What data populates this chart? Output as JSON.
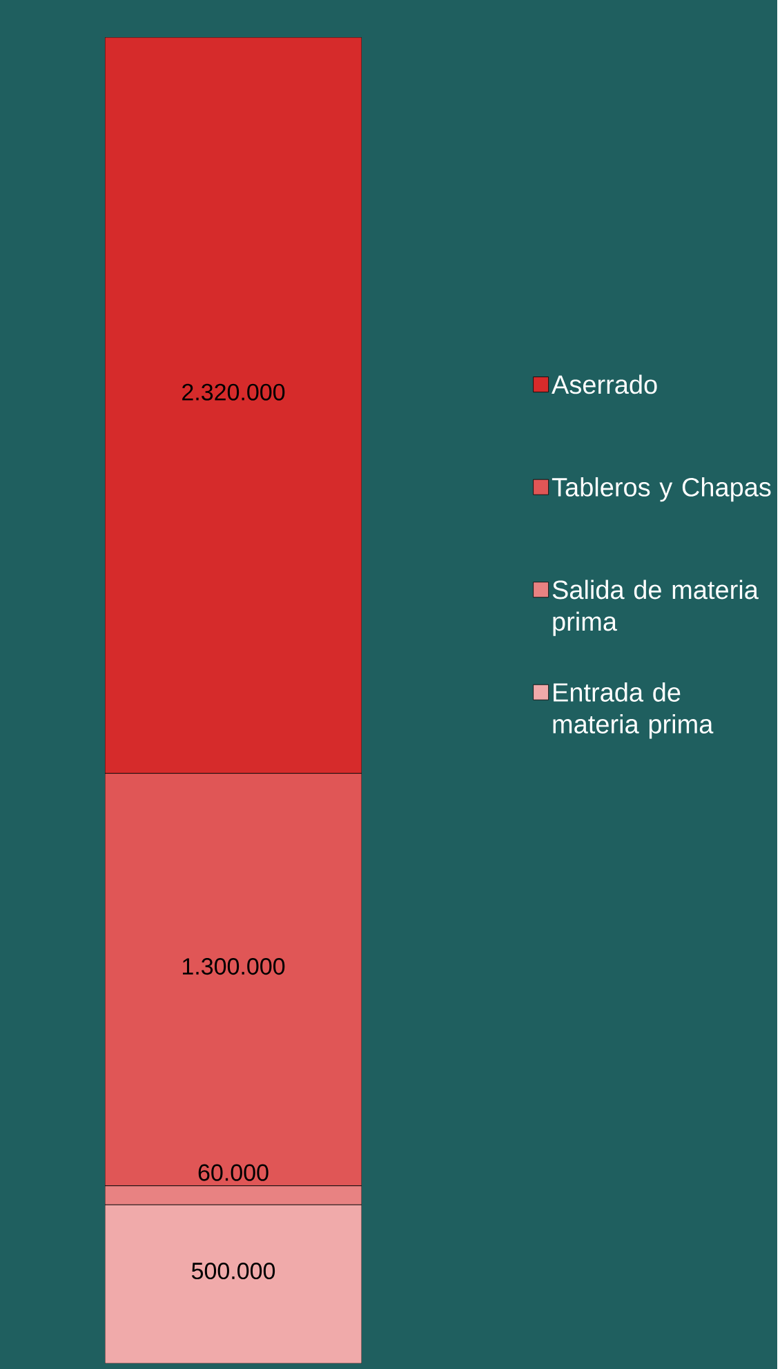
{
  "chart_data": {
    "type": "bar",
    "stacked": true,
    "categories": [
      null
    ],
    "series": [
      {
        "name": "Entrada de materia prima",
        "color": "#f0aaaa",
        "values": [
          500000
        ],
        "value_labels": [
          "500.000"
        ]
      },
      {
        "name": "Salida de materia prima",
        "color": "#e88282",
        "values": [
          60000
        ],
        "value_labels": [
          "60.000"
        ]
      },
      {
        "name": "Tableros y Chapas",
        "color": "#e05656",
        "values": [
          1300000
        ],
        "value_labels": [
          "1.300.000"
        ]
      },
      {
        "name": "Aserrado",
        "color": "#d62b2b",
        "values": [
          2320000
        ],
        "value_labels": [
          "2.320.000"
        ]
      }
    ],
    "legend": "right"
  }
}
